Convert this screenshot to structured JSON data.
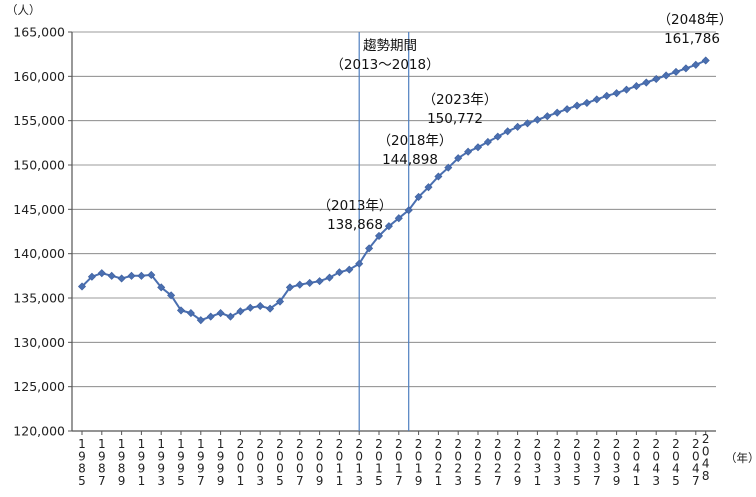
{
  "chart_data": {
    "type": "line",
    "y_unit": "（人）",
    "x_unit": "（年）",
    "ylim": [
      120000,
      165000
    ],
    "y_ticks": [
      "120,000",
      "125,000",
      "130,000",
      "135,000",
      "140,000",
      "145,000",
      "150,000",
      "155,000",
      "160,000",
      "165,000"
    ],
    "x_tick_labels": [
      "1985",
      "1987",
      "1989",
      "1991",
      "1993",
      "1995",
      "1997",
      "1999",
      "2001",
      "2003",
      "2005",
      "2007",
      "2009",
      "2011",
      "2013",
      "2015",
      "2017",
      "2019",
      "2021",
      "2023",
      "2025",
      "2027",
      "2029",
      "2031",
      "2033",
      "2035",
      "2037",
      "2039",
      "2041",
      "2043",
      "2045",
      "2047",
      "2048"
    ],
    "grid": true,
    "color": "#4a6fb0",
    "series": [
      {
        "x": [
          1985,
          1986,
          1987,
          1988,
          1989,
          1990,
          1991,
          1992,
          1993,
          1994,
          1995,
          1996,
          1997,
          1998,
          1999,
          2000,
          2001,
          2002,
          2003,
          2004,
          2005,
          2006,
          2007,
          2008,
          2009,
          2010,
          2011,
          2012,
          2013,
          2014,
          2015,
          2016,
          2017,
          2018,
          2019,
          2020,
          2021,
          2022,
          2023,
          2024,
          2025,
          2026,
          2027,
          2028,
          2029,
          2030,
          2031,
          2032,
          2033,
          2034,
          2035,
          2036,
          2037,
          2038,
          2039,
          2040,
          2041,
          2042,
          2043,
          2044,
          2045,
          2046,
          2047,
          2048
        ],
        "values": [
          136300,
          137400,
          137800,
          137500,
          137200,
          137500,
          137500,
          137600,
          136200,
          135300,
          133600,
          133300,
          132500,
          132900,
          133300,
          132900,
          133500,
          133900,
          134100,
          133800,
          134600,
          136200,
          136500,
          136700,
          136900,
          137300,
          137900,
          138200,
          138868,
          140600,
          142000,
          143100,
          144000,
          144898,
          146400,
          147500,
          148700,
          149700,
          150772,
          151500,
          152000,
          152600,
          153200,
          153800,
          154300,
          154700,
          155100,
          155500,
          155900,
          156300,
          156700,
          157000,
          157400,
          157800,
          158100,
          158500,
          158900,
          159300,
          159700,
          160100,
          160500,
          160900,
          161300,
          161786
        ]
      }
    ],
    "period_lines": [
      2013,
      2018
    ],
    "period_label": "趨勢期間",
    "period_range": "（2013～2018）",
    "annotations": [
      {
        "year_label": "（2013年）",
        "value_label": "138,868"
      },
      {
        "year_label": "（2018年）",
        "value_label": "144,898"
      },
      {
        "year_label": "（2023年）",
        "value_label": "150,772"
      },
      {
        "year_label": "（2048年）",
        "value_label": "161,786"
      }
    ]
  }
}
